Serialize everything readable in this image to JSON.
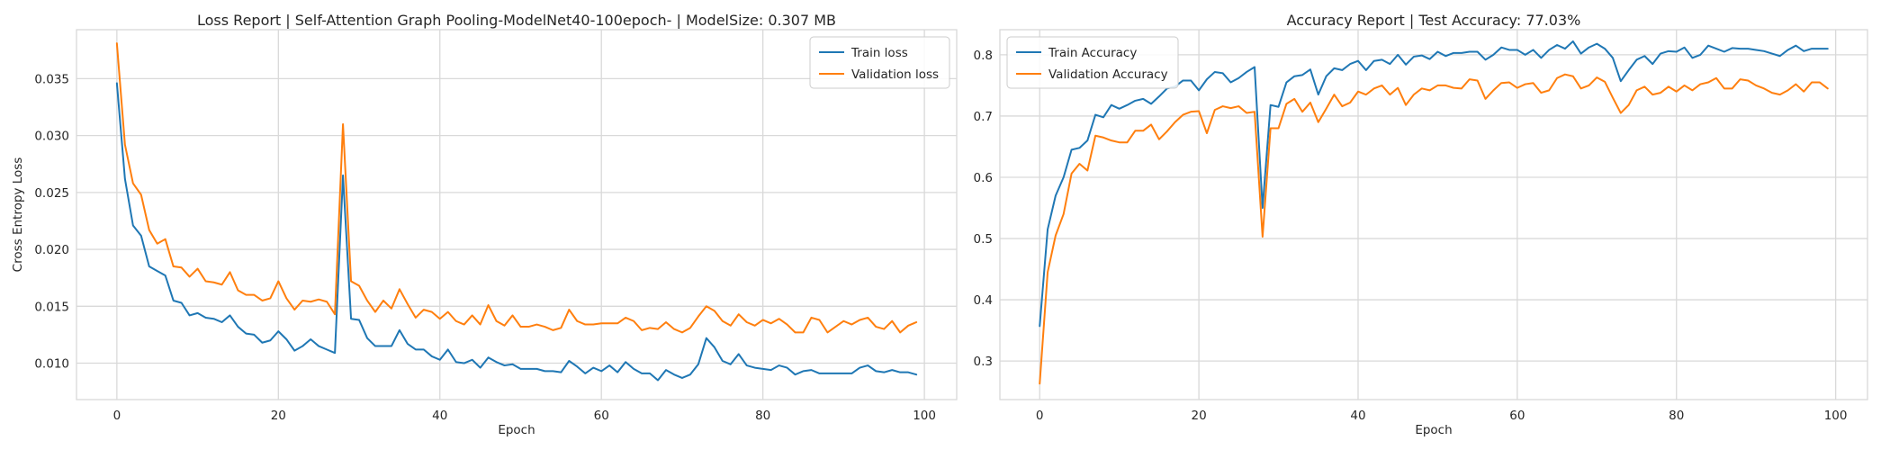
{
  "chart_data": [
    {
      "type": "line",
      "title": "Loss Report | Self-Attention Graph Pooling-ModelNet40-100epoch- | ModelSize: 0.307 MB",
      "xlabel": "Epoch",
      "ylabel": "Cross Entropy Loss",
      "xlim": [
        -5,
        104
      ],
      "ylim": [
        0.0068,
        0.0393
      ],
      "xticks": [
        0,
        20,
        40,
        60,
        80,
        100
      ],
      "yticks": [
        0.01,
        0.015,
        0.02,
        0.025,
        0.03,
        0.035
      ],
      "ytick_labels": [
        "0.010",
        "0.015",
        "0.020",
        "0.025",
        "0.030",
        "0.035"
      ],
      "grid": true,
      "legend_position": "top-right",
      "x": [
        0,
        1,
        2,
        3,
        4,
        5,
        6,
        7,
        8,
        9,
        10,
        11,
        12,
        13,
        14,
        15,
        16,
        17,
        18,
        19,
        20,
        21,
        22,
        23,
        24,
        25,
        26,
        27,
        28,
        29,
        30,
        31,
        32,
        33,
        34,
        35,
        36,
        37,
        38,
        39,
        40,
        41,
        42,
        43,
        44,
        45,
        46,
        47,
        48,
        49,
        50,
        51,
        52,
        53,
        54,
        55,
        56,
        57,
        58,
        59,
        60,
        61,
        62,
        63,
        64,
        65,
        66,
        67,
        68,
        69,
        70,
        71,
        72,
        73,
        74,
        75,
        76,
        77,
        78,
        79,
        80,
        81,
        82,
        83,
        84,
        85,
        86,
        87,
        88,
        89,
        90,
        91,
        92,
        93,
        94,
        95,
        96,
        97,
        98,
        99
      ],
      "series": [
        {
          "name": "Train loss",
          "color": "#1f77b4",
          "values": [
            0.0346,
            0.0262,
            0.0221,
            0.0212,
            0.0185,
            0.0181,
            0.0177,
            0.0155,
            0.0153,
            0.0142,
            0.0144,
            0.014,
            0.0139,
            0.0136,
            0.0142,
            0.0132,
            0.0126,
            0.0125,
            0.0118,
            0.012,
            0.0128,
            0.0121,
            0.0111,
            0.0115,
            0.0121,
            0.0115,
            0.0112,
            0.0109,
            0.0265,
            0.0139,
            0.0138,
            0.0122,
            0.0115,
            0.0115,
            0.0115,
            0.0129,
            0.0117,
            0.0112,
            0.0112,
            0.0106,
            0.0103,
            0.0112,
            0.0101,
            0.01,
            0.0103,
            0.0096,
            0.0105,
            0.0101,
            0.0098,
            0.0099,
            0.0095,
            0.0095,
            0.0095,
            0.0093,
            0.0093,
            0.0092,
            0.0102,
            0.0097,
            0.0091,
            0.0096,
            0.0093,
            0.0098,
            0.0092,
            0.0101,
            0.0095,
            0.0091,
            0.0091,
            0.0085,
            0.0094,
            0.009,
            0.0087,
            0.009,
            0.0099,
            0.0122,
            0.0114,
            0.0102,
            0.0099,
            0.0108,
            0.0098,
            0.0096,
            0.0095,
            0.0094,
            0.0098,
            0.0096,
            0.009,
            0.0093,
            0.0094,
            0.0091,
            0.0091,
            0.0091,
            0.0091,
            0.0091,
            0.0096,
            0.0098,
            0.0093,
            0.0092,
            0.0094,
            0.0092,
            0.0092,
            0.009
          ]
        },
        {
          "name": "Validation loss",
          "color": "#ff7f0e",
          "values": [
            0.0381,
            0.0292,
            0.0258,
            0.0248,
            0.0217,
            0.0205,
            0.0209,
            0.0185,
            0.0184,
            0.0176,
            0.0183,
            0.0172,
            0.0171,
            0.0169,
            0.018,
            0.0164,
            0.016,
            0.016,
            0.0155,
            0.0157,
            0.0172,
            0.0157,
            0.0147,
            0.0155,
            0.0154,
            0.0156,
            0.0154,
            0.0143,
            0.031,
            0.0172,
            0.0168,
            0.0155,
            0.0145,
            0.0155,
            0.0148,
            0.0165,
            0.0152,
            0.014,
            0.0147,
            0.0145,
            0.0139,
            0.0145,
            0.0137,
            0.0134,
            0.0142,
            0.0134,
            0.0151,
            0.0137,
            0.0133,
            0.0142,
            0.0132,
            0.0132,
            0.0134,
            0.0132,
            0.0129,
            0.0131,
            0.0147,
            0.0137,
            0.0134,
            0.0134,
            0.0135,
            0.0135,
            0.0135,
            0.014,
            0.0137,
            0.0129,
            0.0131,
            0.013,
            0.0136,
            0.013,
            0.0127,
            0.0131,
            0.0141,
            0.015,
            0.0146,
            0.0137,
            0.0133,
            0.0143,
            0.0136,
            0.0133,
            0.0138,
            0.0135,
            0.0139,
            0.0134,
            0.0127,
            0.0127,
            0.014,
            0.0138,
            0.0127,
            0.0132,
            0.0137,
            0.0134,
            0.0138,
            0.014,
            0.0132,
            0.013,
            0.0137,
            0.0127,
            0.0133,
            0.0136
          ]
        }
      ]
    },
    {
      "type": "line",
      "title": "Accuracy Report | Test Accuracy: 77.03%",
      "xlabel": "Epoch",
      "ylabel": "",
      "xlim": [
        -5,
        104
      ],
      "ylim": [
        0.237,
        0.841
      ],
      "xticks": [
        0,
        20,
        40,
        60,
        80,
        100
      ],
      "yticks": [
        0.3,
        0.4,
        0.5,
        0.6,
        0.7,
        0.8
      ],
      "ytick_labels": [
        "0.3",
        "0.4",
        "0.5",
        "0.6",
        "0.7",
        "0.8"
      ],
      "grid": true,
      "legend_position": "top-left",
      "x": [
        0,
        1,
        2,
        3,
        4,
        5,
        6,
        7,
        8,
        9,
        10,
        11,
        12,
        13,
        14,
        15,
        16,
        17,
        18,
        19,
        20,
        21,
        22,
        23,
        24,
        25,
        26,
        27,
        28,
        29,
        30,
        31,
        32,
        33,
        34,
        35,
        36,
        37,
        38,
        39,
        40,
        41,
        42,
        43,
        44,
        45,
        46,
        47,
        48,
        49,
        50,
        51,
        52,
        53,
        54,
        55,
        56,
        57,
        58,
        59,
        60,
        61,
        62,
        63,
        64,
        65,
        66,
        67,
        68,
        69,
        70,
        71,
        72,
        73,
        74,
        75,
        76,
        77,
        78,
        79,
        80,
        81,
        82,
        83,
        84,
        85,
        86,
        87,
        88,
        89,
        90,
        91,
        92,
        93,
        94,
        95,
        96,
        97,
        98,
        99
      ],
      "series": [
        {
          "name": "Train Accuracy",
          "color": "#1f77b4",
          "values": [
            0.357,
            0.515,
            0.57,
            0.6,
            0.645,
            0.648,
            0.66,
            0.702,
            0.698,
            0.718,
            0.712,
            0.718,
            0.725,
            0.728,
            0.72,
            0.732,
            0.745,
            0.748,
            0.758,
            0.758,
            0.742,
            0.76,
            0.772,
            0.77,
            0.755,
            0.762,
            0.772,
            0.78,
            0.55,
            0.718,
            0.715,
            0.755,
            0.765,
            0.767,
            0.776,
            0.735,
            0.765,
            0.778,
            0.775,
            0.785,
            0.79,
            0.775,
            0.79,
            0.792,
            0.785,
            0.8,
            0.784,
            0.797,
            0.799,
            0.793,
            0.805,
            0.798,
            0.803,
            0.803,
            0.805,
            0.805,
            0.792,
            0.8,
            0.812,
            0.808,
            0.808,
            0.8,
            0.808,
            0.795,
            0.808,
            0.816,
            0.81,
            0.822,
            0.802,
            0.812,
            0.818,
            0.81,
            0.795,
            0.757,
            0.775,
            0.792,
            0.798,
            0.785,
            0.802,
            0.806,
            0.805,
            0.812,
            0.795,
            0.8,
            0.815,
            0.81,
            0.805,
            0.811,
            0.81,
            0.81,
            0.808,
            0.806,
            0.802,
            0.798,
            0.808,
            0.815,
            0.806,
            0.81,
            0.81,
            0.81
          ]
        },
        {
          "name": "Validation Accuracy",
          "color": "#ff7f0e",
          "values": [
            0.263,
            0.445,
            0.505,
            0.54,
            0.606,
            0.622,
            0.611,
            0.668,
            0.665,
            0.66,
            0.657,
            0.657,
            0.676,
            0.676,
            0.686,
            0.662,
            0.675,
            0.69,
            0.702,
            0.707,
            0.708,
            0.672,
            0.71,
            0.716,
            0.713,
            0.716,
            0.705,
            0.707,
            0.503,
            0.68,
            0.68,
            0.72,
            0.728,
            0.707,
            0.722,
            0.69,
            0.712,
            0.735,
            0.716,
            0.722,
            0.74,
            0.735,
            0.745,
            0.75,
            0.735,
            0.746,
            0.718,
            0.735,
            0.745,
            0.742,
            0.75,
            0.75,
            0.746,
            0.745,
            0.76,
            0.758,
            0.728,
            0.742,
            0.754,
            0.755,
            0.746,
            0.752,
            0.754,
            0.738,
            0.742,
            0.762,
            0.768,
            0.765,
            0.745,
            0.75,
            0.763,
            0.756,
            0.73,
            0.705,
            0.718,
            0.742,
            0.748,
            0.735,
            0.738,
            0.748,
            0.74,
            0.75,
            0.742,
            0.752,
            0.755,
            0.762,
            0.745,
            0.745,
            0.76,
            0.758,
            0.75,
            0.745,
            0.738,
            0.735,
            0.742,
            0.752,
            0.74,
            0.755,
            0.755,
            0.745
          ]
        }
      ]
    }
  ]
}
